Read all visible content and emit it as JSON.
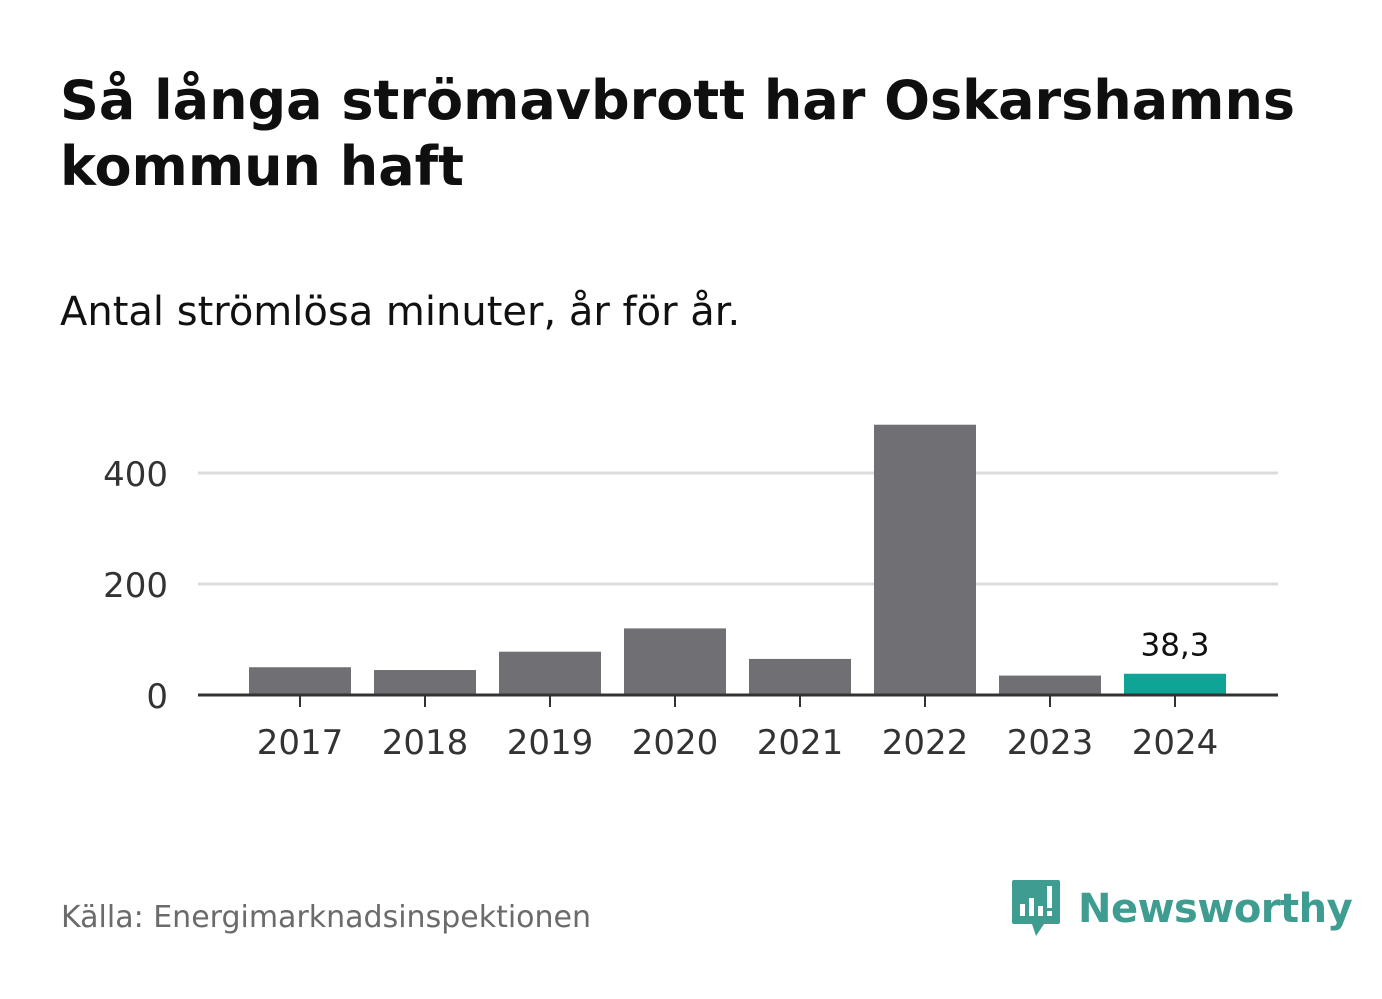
{
  "title": "Så långa strömavbrott har Oskarshamns kommun haft",
  "subtitle": "Antal strömlösa minuter, år för år.",
  "source": "Källa: Energimarknadsinspektionen",
  "brand": "Newsworthy",
  "colors": {
    "bar": "#706f74",
    "highlight": "#0ea496",
    "grid": "#dcdcdc",
    "axis": "#333333",
    "brand": "#3f9c90"
  },
  "chart_data": {
    "type": "bar",
    "title": "Så långa strömavbrott har Oskarshamns kommun haft",
    "subtitle": "Antal strömlösa minuter, år för år.",
    "xlabel": "",
    "ylabel": "",
    "categories": [
      "2017",
      "2018",
      "2019",
      "2020",
      "2021",
      "2022",
      "2023",
      "2024"
    ],
    "values": [
      50,
      45,
      78,
      120,
      65,
      487,
      35,
      38.3
    ],
    "highlight_index": 7,
    "highlight_label": "38,3",
    "yticks": [
      "0",
      "200",
      "400"
    ],
    "ytick_values": [
      0,
      200,
      400
    ],
    "ylim": [
      0,
      487
    ],
    "grid": true
  }
}
